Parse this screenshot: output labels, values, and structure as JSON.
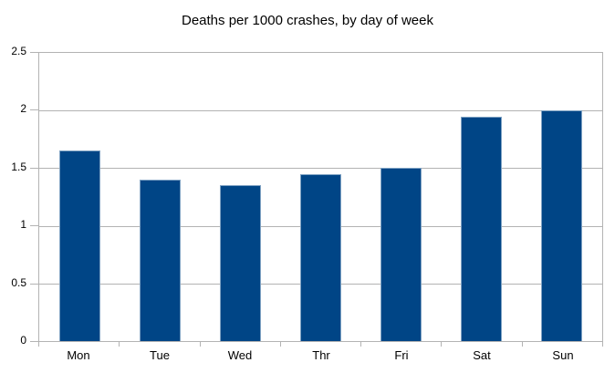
{
  "chart_data": {
    "type": "bar",
    "title": "Deaths per 1000 crashes, by day of week",
    "categories": [
      "Mon",
      "Tue",
      "Wed",
      "Thr",
      "Fri",
      "Sat",
      "Sun"
    ],
    "values": [
      1.65,
      1.4,
      1.35,
      1.45,
      1.5,
      1.95,
      2.0
    ],
    "xlabel": "",
    "ylabel": "",
    "ylim": [
      0,
      2.5
    ],
    "ytick_step": 0.5,
    "ytick_labels": [
      "0",
      "0.5",
      "1",
      "1.5",
      "2",
      "2.5"
    ],
    "grid": true,
    "legend_position": "none",
    "colors": {
      "bar_fill": "#004586",
      "bar_edge": "#7fa2c3",
      "gridline": "#b3b3b3",
      "axis": "#b3b3b3",
      "text": "#000000",
      "background": "#ffffff"
    }
  }
}
